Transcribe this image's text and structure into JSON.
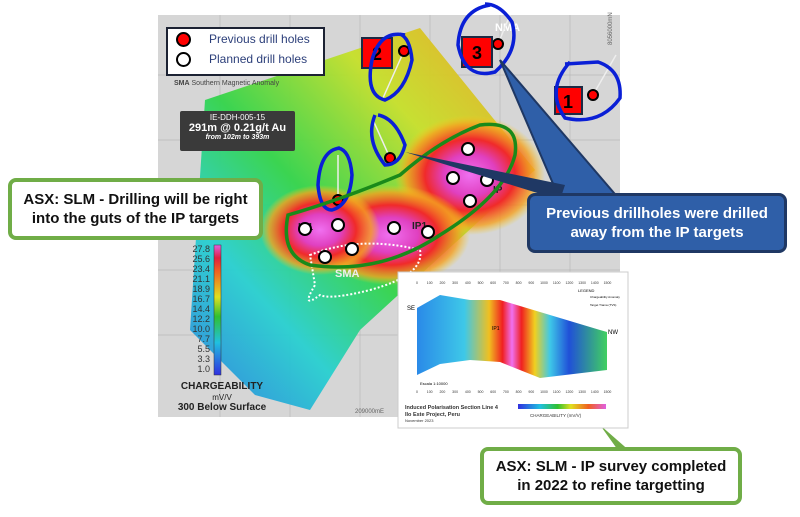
{
  "legend": {
    "items": [
      {
        "label": "Previous drill holes",
        "color": "#ff0000"
      },
      {
        "label": "Planned drill holes",
        "color": "#ffffff"
      }
    ],
    "abbrev": "SMA",
    "abbrev_desc": "Southern Magnetic Anomaly"
  },
  "drill_box": {
    "hole": "IE-DDH-005-15",
    "result": "291m @ 0.21g/t Au",
    "interval": "from 102m to 393m"
  },
  "map_labels": {
    "sma": "SMA",
    "nma": "NMA",
    "ip": "IP1",
    "ip2": "IP",
    "northing": "8056000mN",
    "easting": "209000mE"
  },
  "hole_labels": [
    "1",
    "2",
    "3"
  ],
  "scale": {
    "values": [
      "27.8",
      "25.6",
      "23.4",
      "21.1",
      "18.9",
      "16.7",
      "14.4",
      "12.2",
      "10.0",
      "7.7",
      "5.5",
      "3.3",
      "1.0"
    ],
    "title": "CHARGEABILITY",
    "unit": "mV/V",
    "depth": "300 Below Surface"
  },
  "inset": {
    "se": "SE",
    "nw": "NW",
    "ip": "IP1",
    "ticks": [
      "0",
      "100",
      "200",
      "300",
      "400",
      "500",
      "600",
      "700",
      "800",
      "900",
      "1000",
      "1100",
      "1200",
      "1300",
      "1400",
      "1500"
    ],
    "legend_title": "LEGEND",
    "legend_a": "Chargeability Anomaly",
    "legend_b": "Target Trama (TVS)",
    "scale_label": "Escala 1:10000",
    "title1": "Induced Polarisation Section Line 4",
    "title2": "Ilo Este Project, Peru",
    "title3": "November 2023",
    "bar_label": "CHARGEABILITY (mV/V)"
  },
  "callouts": {
    "left": [
      "ASX: SLM - Drilling will be right",
      "into the guts of the IP targets"
    ],
    "right": [
      "Previous drillholes were drilled",
      "away from the IP targets"
    ],
    "bottom": [
      "ASX: SLM - IP survey completed",
      "in 2022 to refine targetting"
    ]
  },
  "colors": {
    "annotation_blue": "#0a1fd6",
    "annotation_green": "#1a8a1a",
    "callout_blue": "#2F5FA8",
    "callout_green": "#70AD47"
  }
}
